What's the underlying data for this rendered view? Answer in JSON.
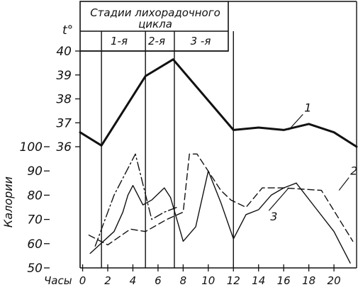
{
  "chart_data": {
    "type": "line",
    "title_line1": "Стадии лихорадочного",
    "title_line2": "цикла",
    "stage_labels": [
      "1-я",
      "2-я",
      "3 -я"
    ],
    "xlabel": "Часы",
    "ylabel_temp": "t°",
    "ylabel_cal": "Калории",
    "x_ticks": [
      0,
      2,
      4,
      6,
      8,
      10,
      12,
      14,
      16,
      18,
      20
    ],
    "temp_ticks": [
      36,
      37,
      38,
      39,
      40
    ],
    "cal_ticks": [
      50,
      60,
      70,
      80,
      90,
      100
    ],
    "xlim": [
      -0.2,
      21.8
    ],
    "temp_ylim": [
      36,
      40
    ],
    "cal_ylim": [
      50,
      100
    ],
    "stage_boundaries": [
      0,
      1.5,
      5,
      7.3,
      12
    ],
    "series": [
      {
        "name": "1",
        "axis": "temp",
        "style": "solid-bold",
        "x": [
          -0.2,
          1.5,
          5,
          7.2,
          12,
          14,
          16,
          18,
          20,
          21.8
        ],
        "y": [
          36.6,
          36.05,
          38.95,
          39.65,
          36.7,
          36.8,
          36.7,
          36.95,
          36.6,
          36.0
        ]
      },
      {
        "name": "2",
        "axis": "cal",
        "style": "dashed",
        "x": [
          0.5,
          2,
          3.8,
          5,
          6.7,
          8,
          8.5,
          9.1,
          11,
          11.8,
          13,
          14.3,
          16,
          19,
          21.5
        ],
        "y": [
          63.5,
          59.5,
          66,
          65,
          70,
          73,
          97,
          97,
          82,
          78,
          75,
          83,
          83,
          82,
          61
        ]
      },
      {
        "name": "3",
        "axis": "cal",
        "style": "solid-thin",
        "x": [
          0.6,
          2.5,
          3.2,
          3.6,
          4,
          4.8,
          5.5,
          6.5,
          7,
          8,
          9,
          10,
          11,
          12,
          13,
          14,
          15,
          16,
          17
        ],
        "y": [
          56,
          65,
          73,
          80,
          84,
          76,
          78,
          83,
          79,
          61,
          67,
          90,
          77,
          62,
          72,
          74,
          80,
          83,
          85
        ]
      },
      {
        "name": "",
        "axis": "cal",
        "style": "dash-dot",
        "x": [
          1,
          2.5,
          4.2,
          5.5,
          6.5,
          7.5
        ],
        "y": [
          59,
          80,
          97,
          70,
          73,
          75
        ]
      },
      {
        "name": "",
        "axis": "cal",
        "style": "solid-thin",
        "x": [
          17,
          18.5,
          20,
          21.3
        ],
        "y": [
          85,
          75,
          65,
          52
        ]
      }
    ],
    "curve_labels": [
      {
        "text": "1",
        "at_x": 16.4,
        "at_temp": 36.7
      },
      {
        "text": "2",
        "at_x": 20.4,
        "at_cal": 82
      },
      {
        "text": "3",
        "at_x": 16.4,
        "at_cal": 83
      }
    ]
  }
}
